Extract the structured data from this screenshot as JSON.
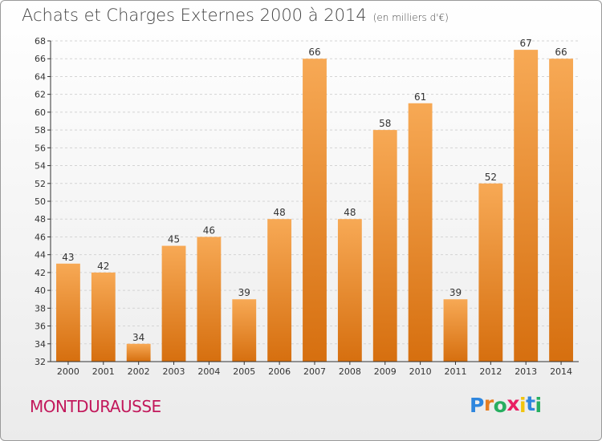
{
  "header": {
    "title": "Achats et Charges Externes 2000 à 2014",
    "unit": "(en milliers d'€)"
  },
  "footer": {
    "town": "MONTDURAUSSE",
    "logo_letters": [
      {
        "ch": "P",
        "color": "#2e86de"
      },
      {
        "ch": "r",
        "color": "#e67e22"
      },
      {
        "ch": "o",
        "color": "#27ae60"
      },
      {
        "ch": "x",
        "color": "#e91e63"
      },
      {
        "ch": "i",
        "color": "#f1c40f"
      },
      {
        "ch": "t",
        "color": "#2e86de"
      },
      {
        "ch": "i",
        "color": "#27ae60"
      }
    ]
  },
  "chart_data": {
    "type": "bar",
    "title": "Achats et Charges Externes 2000 à 2014",
    "subtitle": "(en milliers d'€)",
    "categories": [
      "2000",
      "2001",
      "2002",
      "2003",
      "2004",
      "2005",
      "2006",
      "2007",
      "2008",
      "2009",
      "2010",
      "2011",
      "2012",
      "2013",
      "2014"
    ],
    "values": [
      43,
      42,
      34,
      45,
      46,
      39,
      48,
      66,
      48,
      58,
      61,
      39,
      52,
      67,
      66
    ],
    "ylim": [
      32,
      68
    ],
    "ytick_step": 2,
    "grid": true,
    "bar_color_light": "#f7a955",
    "bar_color_dark": "#d66f0f"
  }
}
